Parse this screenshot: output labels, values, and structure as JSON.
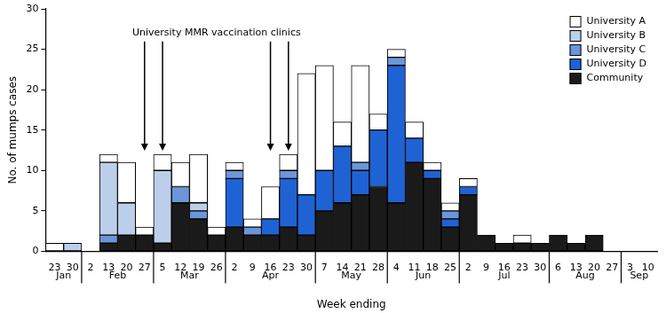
{
  "chart_data": {
    "type": "bar",
    "stacked": true,
    "categories": [
      "23",
      "30",
      "2",
      "13",
      "20",
      "27",
      "5",
      "12",
      "19",
      "26",
      "2",
      "9",
      "16",
      "23",
      "30",
      "7",
      "14",
      "21",
      "28",
      "4",
      "11",
      "18",
      "25",
      "2",
      "9",
      "16",
      "23",
      "30",
      "6",
      "13",
      "20",
      "27",
      "3",
      "10"
    ],
    "months": [
      "Jan",
      "Jan",
      "Feb",
      "Feb",
      "Feb",
      "Feb",
      "Mar",
      "Mar",
      "Mar",
      "Mar",
      "Apr",
      "Apr",
      "Apr",
      "Apr",
      "Apr",
      "May",
      "May",
      "May",
      "May",
      "Jun",
      "Jun",
      "Jun",
      "Jun",
      "Jul",
      "Jul",
      "Jul",
      "Jul",
      "Jul",
      "Aug",
      "Aug",
      "Aug",
      "Aug",
      "Sep",
      "Sep"
    ],
    "series": [
      {
        "name": "University A",
        "color": "#ffffff",
        "values": [
          1,
          0,
          0,
          1,
          5,
          1,
          2,
          3,
          6,
          1,
          1,
          1,
          4,
          2,
          15,
          13,
          3,
          12,
          2,
          1,
          2,
          1,
          1,
          1,
          0,
          0,
          1,
          0,
          0,
          0,
          0,
          0,
          0,
          0
        ]
      },
      {
        "name": "University B",
        "color": "#bccfea",
        "values": [
          0,
          1,
          0,
          9,
          4,
          0,
          9,
          0,
          1,
          0,
          0,
          0,
          0,
          0,
          0,
          0,
          0,
          0,
          0,
          0,
          0,
          0,
          0,
          0,
          0,
          0,
          0,
          0,
          0,
          0,
          0,
          0,
          0,
          0
        ]
      },
      {
        "name": "University C",
        "color": "#6b96d8",
        "values": [
          0,
          0,
          0,
          1,
          0,
          0,
          0,
          2,
          1,
          0,
          1,
          1,
          0,
          1,
          0,
          0,
          0,
          1,
          0,
          1,
          0,
          0,
          1,
          0,
          0,
          0,
          0,
          0,
          0,
          0,
          0,
          0,
          0,
          0
        ]
      },
      {
        "name": "University D",
        "color": "#1f62d4",
        "values": [
          0,
          0,
          0,
          0,
          0,
          0,
          0,
          0,
          0,
          0,
          6,
          0,
          2,
          6,
          5,
          5,
          7,
          3,
          7,
          17,
          3,
          1,
          1,
          1,
          0,
          0,
          0,
          0,
          0,
          0,
          0,
          0,
          0,
          0
        ]
      },
      {
        "name": "Community",
        "color": "#1a1a1a",
        "values": [
          0,
          0,
          0,
          1,
          2,
          2,
          1,
          6,
          4,
          2,
          3,
          2,
          2,
          3,
          2,
          5,
          6,
          7,
          8,
          6,
          11,
          9,
          3,
          7,
          2,
          1,
          1,
          1,
          2,
          1,
          2,
          0,
          0,
          0
        ]
      }
    ],
    "ylim": [
      0,
      30
    ],
    "yticks": [
      0,
      5,
      10,
      15,
      20,
      25,
      30
    ],
    "y_label": "No. of mumps cases",
    "x_label": "Week ending",
    "legend": "upper right",
    "grid": false,
    "annotations": [
      {
        "text": "University MMR vaccination clinics",
        "at": [
          5,
          6,
          12,
          13
        ]
      }
    ]
  }
}
